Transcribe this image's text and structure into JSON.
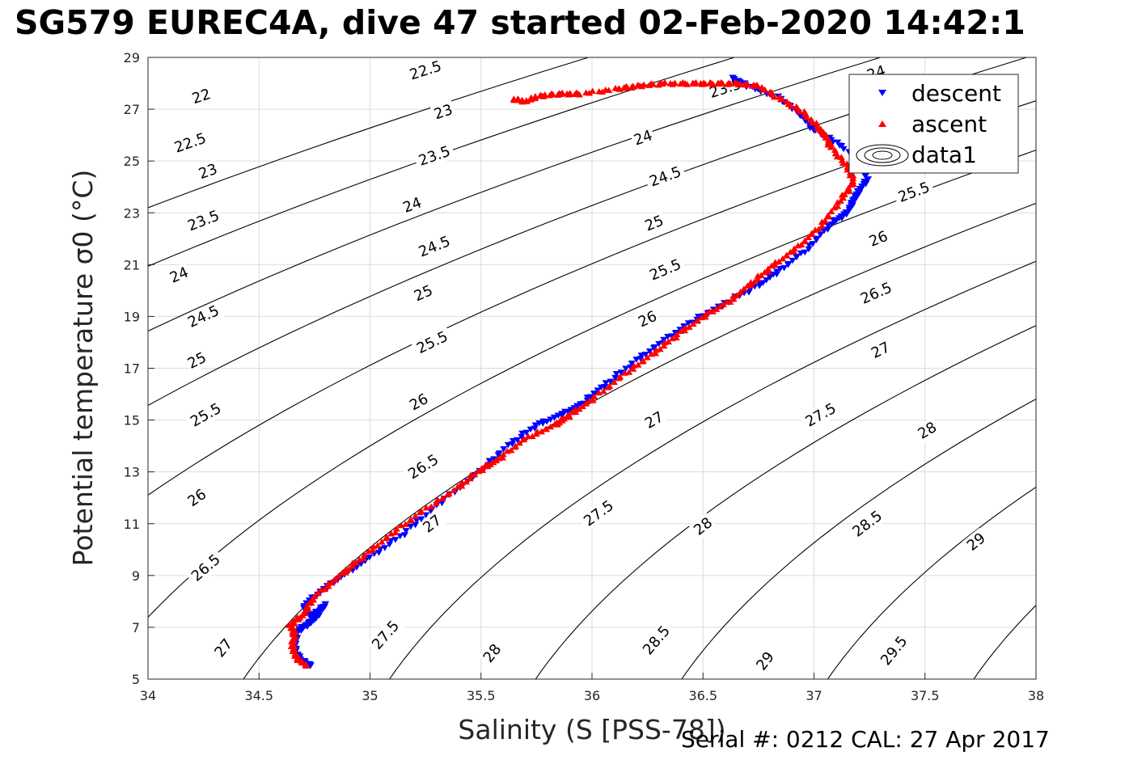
{
  "title": "SG579 EUREC4A, dive 47 started 02-Feb-2020 14:42:1",
  "footer": "Serial #: 0212  CAL: 27 Apr 2017",
  "chart_data": {
    "type": "scatter",
    "xlabel": "Salinity (S [PSS-78])",
    "ylabel": "Potential temperature σ0 (°C)",
    "xlim": [
      34,
      38
    ],
    "ylim": [
      5,
      29
    ],
    "xticks": [
      34,
      34.5,
      35,
      35.5,
      36,
      36.5,
      37,
      37.5,
      38
    ],
    "xtick_labels": [
      "34",
      "34.5",
      "35",
      "35.5",
      "36",
      "36.5",
      "37",
      "37.5",
      "38"
    ],
    "yticks": [
      5,
      7,
      9,
      11,
      13,
      15,
      17,
      19,
      21,
      23,
      25,
      27,
      29
    ],
    "ytick_labels": [
      "5",
      "7",
      "9",
      "11",
      "13",
      "15",
      "17",
      "19",
      "21",
      "23",
      "25",
      "27",
      "29"
    ],
    "grid": true,
    "legend_position": "top-right",
    "legend": [
      "descent",
      "ascent",
      "data1"
    ],
    "series": [
      {
        "name": "descent",
        "color": "#0000ff",
        "marker": "triangle-down",
        "x": [
          34.74,
          34.68,
          34.66,
          34.67,
          34.7,
          34.75,
          34.8,
          34.74,
          34.7,
          34.78,
          34.88,
          35.0,
          35.15,
          35.3,
          35.48,
          35.62,
          35.75,
          35.86,
          35.95,
          36.05,
          36.2,
          36.33,
          36.45,
          36.6,
          36.75,
          36.85,
          36.97,
          37.08,
          37.15,
          37.18,
          37.2,
          37.24,
          37.22,
          37.1,
          37.0,
          36.95,
          36.85,
          36.7,
          36.63
        ],
        "y": [
          5.5,
          5.8,
          6.2,
          6.8,
          7.0,
          7.3,
          7.9,
          7.4,
          7.8,
          8.4,
          9.0,
          9.7,
          10.6,
          11.7,
          12.9,
          14.0,
          14.8,
          15.2,
          15.6,
          16.3,
          17.3,
          18.1,
          18.8,
          19.5,
          20.2,
          20.8,
          21.6,
          22.6,
          23.0,
          23.5,
          23.8,
          24.3,
          25.0,
          25.7,
          26.2,
          26.7,
          27.4,
          27.9,
          28.2
        ]
      },
      {
        "name": "ascent",
        "color": "#ff0000",
        "marker": "triangle-up",
        "x": [
          34.72,
          34.67,
          34.65,
          34.66,
          34.64,
          34.7,
          34.75,
          34.85,
          34.95,
          35.08,
          35.22,
          35.38,
          35.5,
          35.58,
          35.7,
          35.83,
          35.9,
          36.0,
          36.15,
          36.28,
          36.4,
          36.52,
          36.62,
          36.72,
          36.82,
          36.93,
          37.03,
          37.12,
          37.18,
          37.15,
          37.08,
          37.05,
          37.02,
          36.95,
          36.85,
          36.75,
          36.65,
          36.55,
          36.45,
          36.32,
          36.2,
          36.12,
          35.95,
          35.85,
          35.75,
          35.7,
          35.65
        ],
        "y": [
          5.5,
          5.8,
          6.3,
          6.8,
          7.1,
          7.5,
          8.2,
          8.9,
          9.6,
          10.5,
          11.4,
          12.3,
          13.1,
          13.5,
          14.3,
          14.8,
          15.2,
          15.8,
          16.8,
          17.6,
          18.4,
          19.1,
          19.6,
          20.3,
          21.0,
          21.7,
          22.5,
          23.5,
          24.2,
          24.8,
          25.5,
          26.0,
          26.3,
          26.9,
          27.4,
          27.9,
          28.0,
          28.0,
          28.0,
          28.0,
          27.9,
          27.8,
          27.6,
          27.6,
          27.5,
          27.3,
          27.4
        ]
      }
    ],
    "contours": {
      "name": "data1",
      "variable": "sigma0",
      "levels": [
        22,
        22.5,
        23,
        23.5,
        24,
        24.5,
        25,
        25.5,
        26,
        26.5,
        27,
        27.5,
        28,
        28.5,
        29,
        29.5
      ],
      "labels": [
        {
          "text": "22.5",
          "s": 35.25,
          "t": 28.5
        },
        {
          "text": "22",
          "s": 34.24,
          "t": 27.5
        },
        {
          "text": "22.5",
          "s": 34.19,
          "t": 25.7
        },
        {
          "text": "23",
          "s": 35.33,
          "t": 26.9
        },
        {
          "text": "23",
          "s": 34.27,
          "t": 24.6
        },
        {
          "text": "23.5",
          "s": 35.29,
          "t": 25.2
        },
        {
          "text": "23.5",
          "s": 36.6,
          "t": 27.8
        },
        {
          "text": "23.5",
          "s": 34.25,
          "t": 22.7
        },
        {
          "text": "24",
          "s": 35.19,
          "t": 23.3
        },
        {
          "text": "24",
          "s": 36.23,
          "t": 25.9
        },
        {
          "text": "24",
          "s": 37.28,
          "t": 28.4
        },
        {
          "text": "24",
          "s": 34.14,
          "t": 20.6
        },
        {
          "text": "24.5",
          "s": 35.29,
          "t": 21.7
        },
        {
          "text": "24.5",
          "s": 36.33,
          "t": 24.4
        },
        {
          "text": "24.5",
          "s": 34.25,
          "t": 19.0
        },
        {
          "text": "25",
          "s": 35.24,
          "t": 19.9
        },
        {
          "text": "25",
          "s": 36.28,
          "t": 22.6
        },
        {
          "text": "25",
          "s": 34.22,
          "t": 17.3
        },
        {
          "text": "25.5",
          "s": 35.28,
          "t": 18.0
        },
        {
          "text": "25.5",
          "s": 36.33,
          "t": 20.8
        },
        {
          "text": "25.5",
          "s": 37.45,
          "t": 23.8
        },
        {
          "text": "25.5",
          "s": 34.26,
          "t": 15.2
        },
        {
          "text": "26",
          "s": 35.22,
          "t": 15.7
        },
        {
          "text": "26",
          "s": 36.25,
          "t": 18.9
        },
        {
          "text": "26",
          "s": 37.29,
          "t": 22.0
        },
        {
          "text": "26",
          "s": 34.22,
          "t": 12.0
        },
        {
          "text": "26.5",
          "s": 35.24,
          "t": 13.2
        },
        {
          "text": "26.5",
          "s": 37.28,
          "t": 19.9
        },
        {
          "text": "26.5",
          "s": 34.26,
          "t": 9.3
        },
        {
          "text": "27",
          "s": 35.28,
          "t": 11.0
        },
        {
          "text": "27",
          "s": 36.28,
          "t": 15.0
        },
        {
          "text": "27",
          "s": 37.3,
          "t": 17.7
        },
        {
          "text": "27",
          "s": 34.34,
          "t": 6.2
        },
        {
          "text": "27.5",
          "s": 36.03,
          "t": 11.4
        },
        {
          "text": "27.5",
          "s": 37.03,
          "t": 15.2
        },
        {
          "text": "27.5",
          "s": 35.07,
          "t": 6.7
        },
        {
          "text": "28",
          "s": 36.5,
          "t": 10.9
        },
        {
          "text": "28",
          "s": 37.51,
          "t": 14.6
        },
        {
          "text": "28",
          "s": 35.55,
          "t": 6.0
        },
        {
          "text": "28.5",
          "s": 37.24,
          "t": 11.0
        },
        {
          "text": "28.5",
          "s": 36.29,
          "t": 6.5
        },
        {
          "text": "29",
          "s": 37.73,
          "t": 10.3
        },
        {
          "text": "29",
          "s": 36.78,
          "t": 5.7
        },
        {
          "text": "29.5",
          "s": 37.36,
          "t": 6.1
        }
      ]
    }
  }
}
